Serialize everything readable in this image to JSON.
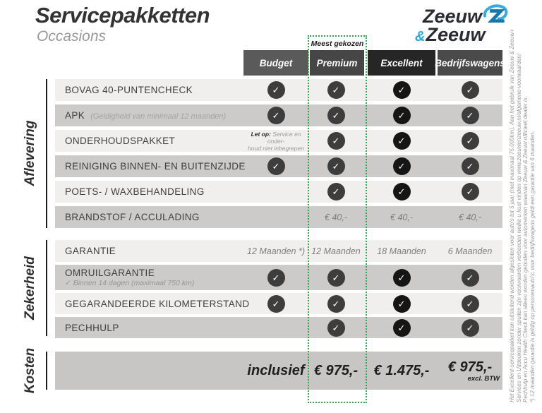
{
  "colors": {
    "accent_green": "#3ca04e",
    "brand_blue": "#2ba7da",
    "brand_dark": "#2a2c31"
  },
  "header": {
    "title": "Servicepakketten",
    "subtitle": "Occasions",
    "logo_line1": "Zeeuw",
    "logo_amp": "&",
    "logo_line2": "Zeeuw"
  },
  "badge": "Meest gekozen",
  "columns": [
    "Budget",
    "Premium",
    "Excellent",
    "Bedrijfswagens"
  ],
  "sections": [
    {
      "label": "Aflevering",
      "rows": [
        {
          "label": "BOVAG 40-PUNTENCHECK",
          "cells": [
            "check",
            "check",
            "check",
            "check"
          ]
        },
        {
          "label": "APK",
          "sublabel": "(Geldigheid van minimaal 12 maanden)",
          "cells": [
            "check",
            "check",
            "check",
            "check"
          ]
        },
        {
          "label": "ONDERHOUDSPAKKET",
          "note": {
            "bold": "Let op:",
            "line1": "Service en onder-",
            "line2": "houd niet inbegrepen"
          },
          "cells": [
            "note",
            "check",
            "check",
            "check"
          ]
        },
        {
          "label": "REINIGING BINNEN- EN BUITENZIJDE",
          "cells": [
            "check",
            "check",
            "check",
            "check"
          ]
        },
        {
          "label": "POETS- / WAXBEHANDELING",
          "cells": [
            "",
            "check",
            "check",
            "check"
          ]
        },
        {
          "label": "BRANDSTOF / ACCULADING",
          "cells": [
            "",
            "€ 40,-",
            "€ 40,-",
            "€ 40,-"
          ]
        }
      ]
    },
    {
      "label": "Zekerheid",
      "rows": [
        {
          "label": "GARANTIE",
          "cells": [
            "12 Maanden *)",
            "12 Maanden",
            "18 Maanden",
            "6 Maanden"
          ]
        },
        {
          "label": "OMRUILGARANTIE",
          "sublabel": "✓   Binnen 14 dagen (maximaal 750 km)",
          "cells": [
            "check",
            "check",
            "check",
            "check"
          ]
        },
        {
          "label": "GEGARANDEERDE KILOMETERSTAND",
          "cells": [
            "check",
            "check",
            "check",
            "check"
          ]
        },
        {
          "label": "PECHHULP",
          "cells": [
            "",
            "check",
            "check",
            "check"
          ]
        }
      ]
    },
    {
      "label": "Kosten",
      "rows": [
        {
          "label": "",
          "cells": [
            "inclusief",
            "€ 975,-",
            "€ 1.475,-",
            "€ 975,-"
          ],
          "cell3_sub": "excl. BTW"
        }
      ]
    }
  ],
  "footnote_lines": [
    "Het Excellent-servicepakket kan uitsluitend worden afgesloten voor auto's tot 5 jaar (met maximaal 75.000km). Aan het gebruik van Zeeuw & Zeeuw+",
    "Services en Uitdeuken zonder spuiten zijn voorwaarden verbonden welke u kunt vinden op www.zeeuwenzeeuw.nl/algemene-voorwaarden/",
    "Pechhulp en Accu Health Check kan alleen worden geboden voor automerken waarvan Zeeuw & Zeeuw officieel dealer is.",
    "*) 12 maanden garantie is geldig op personenauto's; voor bedrijfswagens geldt een garantie van 6 maanden."
  ]
}
